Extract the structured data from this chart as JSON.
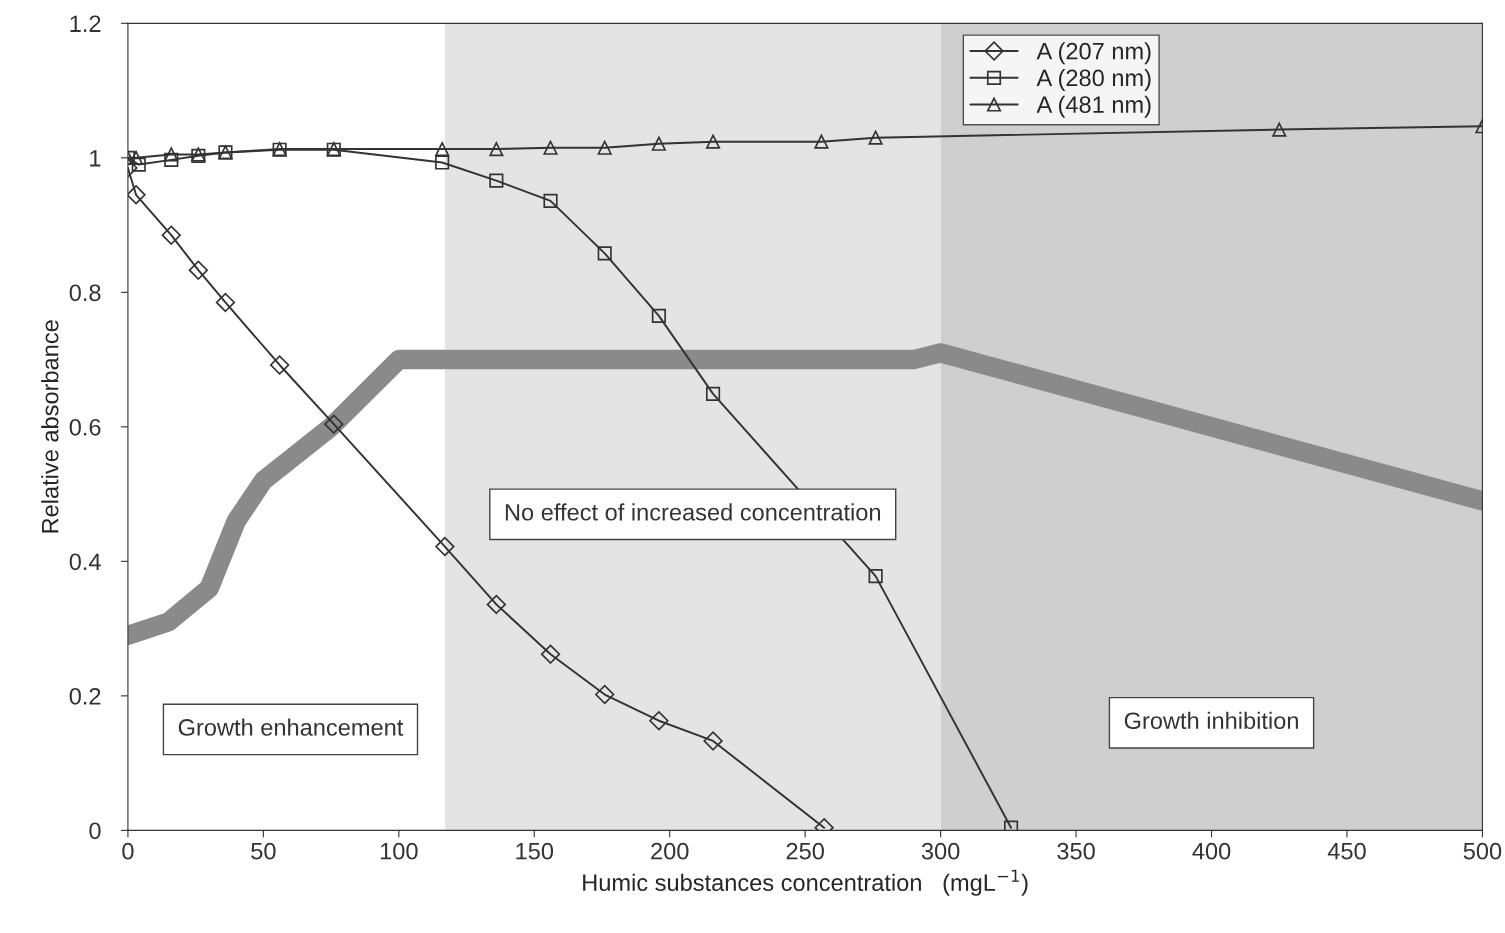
{
  "chart_data": {
    "type": "line",
    "xlabel": "Humic substances concentration   (mgL$^{−1}$)",
    "ylabel": "Relative absorbance",
    "xlim": [
      0,
      500
    ],
    "ylim": [
      0,
      1.2
    ],
    "xticks": [
      0,
      50,
      100,
      150,
      200,
      250,
      300,
      350,
      400,
      450,
      500
    ],
    "yticks": [
      0,
      0.2,
      0.4,
      0.6,
      0.8,
      1,
      1.2
    ],
    "grid": false,
    "legend": "top right",
    "annotations": [
      "Growth enhancement"
    ],
    "series": [
      {
        "name": "A (207 nm)",
        "color": "#333333",
        "marker": "diamond",
        "x": [
          0,
          3,
          16,
          26,
          36,
          56,
          76,
          117,
          136,
          156,
          176,
          196,
          216,
          257
        ],
        "values": [
          0.985,
          0.945,
          0.885,
          0.833,
          0.785,
          0.692,
          0.604,
          0.422,
          0.336,
          0.262,
          0.202,
          0.163,
          0.133,
          0.004
        ]
      },
      {
        "name": "A (280 nm)",
        "color": "#333333",
        "marker": "square",
        "x": [
          0,
          4,
          16,
          26,
          36,
          56,
          76,
          116,
          136,
          156,
          176,
          196,
          216,
          276,
          326
        ],
        "values": [
          1.0,
          0.99,
          0.997,
          1.003,
          1.008,
          1.012,
          1.012,
          0.993,
          0.966,
          0.936,
          0.858,
          0.765,
          0.649,
          0.378,
          0.004
        ]
      },
      {
        "name": "A (481 nm)",
        "color": "#333333",
        "marker": "triangle",
        "x": [
          0,
          3,
          16,
          26,
          36,
          56,
          76,
          116,
          136,
          156,
          176,
          196,
          216,
          256,
          276,
          425,
          500
        ],
        "values": [
          1.0,
          1.0,
          1.005,
          1.005,
          1.008,
          1.013,
          1.013,
          1.013,
          1.013,
          1.015,
          1.015,
          1.021,
          1.024,
          1.024,
          1.03,
          1.042,
          1.047
        ]
      },
      {
        "color": "#8a8a8a",
        "marker": "none",
        "x": [
          0,
          15,
          30,
          40,
          50,
          75,
          100,
          110,
          290,
          300,
          500
        ],
        "values": [
          0.29,
          0.31,
          0.36,
          0.46,
          0.52,
          0.6,
          0.7,
          0.7,
          0.7,
          0.71,
          0.49
        ]
      }
    ],
    "bands": [
      {
        "axis": "x",
        "from": 117,
        "to": 300,
        "label": "No effect of increased concentration",
        "color": "#e4e4e4"
      },
      {
        "axis": "x",
        "from": 300,
        "to": 500,
        "label": "Growth inhibition",
        "color": "#cfcfcf"
      }
    ]
  }
}
